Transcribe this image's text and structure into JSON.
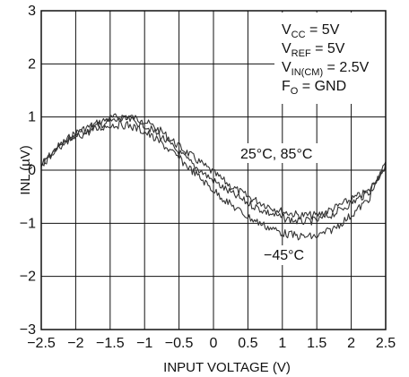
{
  "chart_data": {
    "type": "line",
    "title": "",
    "xlabel": "INPUT VOLTAGE (V)",
    "ylabel": "INL (µV)",
    "xlim": [
      -2.5,
      2.5
    ],
    "ylim": [
      -3,
      3
    ],
    "x_ticks": [
      "−2.5",
      "−2",
      "−1.5",
      "−1",
      "−0.5",
      "0",
      "0.5",
      "1",
      "1.5",
      "2",
      "2.5"
    ],
    "y_ticks": [
      "3",
      "2",
      "1",
      "0",
      "−1",
      "−2",
      "−3"
    ],
    "grid": true,
    "conditions": [
      {
        "main": "V",
        "sub": "CC",
        "rest": " = 5V"
      },
      {
        "main": "V",
        "sub": "REF",
        "rest": " = 5V"
      },
      {
        "main": "V",
        "sub": "IN(CM)",
        "rest": " = 2.5V"
      },
      {
        "main": "F",
        "sub": "O",
        "rest": " = GND"
      }
    ],
    "annotations": [
      {
        "text": "25°C, 85°C"
      },
      {
        "text": "−45°C"
      }
    ],
    "series": [
      {
        "color": "#333333",
        "x": [
          -2.5,
          -2.25,
          -2.0,
          -1.75,
          -1.5,
          -1.25,
          -1.0,
          -0.75,
          -0.5,
          -0.25,
          0.0,
          0.25,
          0.5,
          0.75,
          1.0,
          1.25,
          1.5,
          1.75,
          2.0,
          2.25,
          2.5
        ],
        "y": [
          0.1,
          0.45,
          0.7,
          0.85,
          0.98,
          1.02,
          0.92,
          0.72,
          0.45,
          0.2,
          -0.05,
          -0.3,
          -0.5,
          -0.65,
          -0.78,
          -0.85,
          -0.85,
          -0.72,
          -0.55,
          -0.4,
          0.1
        ]
      },
      {
        "color": "#333333",
        "x": [
          -2.5,
          -2.25,
          -2.0,
          -1.75,
          -1.5,
          -1.25,
          -1.0,
          -0.75,
          -0.5,
          -0.25,
          0.0,
          0.25,
          0.5,
          0.75,
          1.0,
          1.25,
          1.5,
          1.75,
          2.0,
          2.25,
          2.5
        ],
        "y": [
          0.1,
          0.43,
          0.67,
          0.8,
          0.92,
          0.95,
          0.85,
          0.62,
          0.33,
          0.05,
          -0.2,
          -0.43,
          -0.62,
          -0.78,
          -0.9,
          -0.97,
          -0.95,
          -0.82,
          -0.62,
          -0.42,
          0.1
        ]
      },
      {
        "color": "#333333",
        "x": [
          -2.5,
          -2.25,
          -2.0,
          -1.75,
          -1.5,
          -1.25,
          -1.0,
          -0.75,
          -0.5,
          -0.25,
          0.0,
          0.25,
          0.5,
          0.75,
          1.0,
          1.25,
          1.5,
          1.75,
          2.0,
          2.25,
          2.5
        ],
        "y": [
          0.1,
          0.4,
          0.62,
          0.75,
          0.85,
          0.85,
          0.72,
          0.5,
          0.22,
          -0.08,
          -0.38,
          -0.65,
          -0.88,
          -1.05,
          -1.18,
          -1.25,
          -1.25,
          -1.1,
          -0.85,
          -0.55,
          0.1
        ]
      }
    ]
  }
}
